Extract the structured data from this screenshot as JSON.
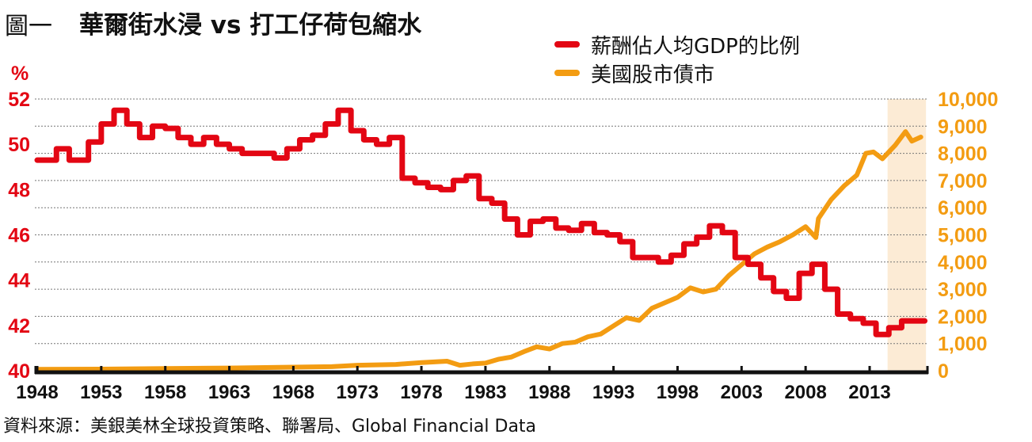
{
  "title": {
    "prefix": "圖一",
    "main": "華爾街水浸 vs 打工仔荷包縮水"
  },
  "legend": [
    {
      "label": "薪酬佔人均GDP的比例",
      "color": "#e30613"
    },
    {
      "label": "美國股市債市",
      "color": "#f39c12"
    }
  ],
  "source": "資料來源：美銀美林全球投資策略、聯署局、Global Financial Data",
  "chart_data": {
    "type": "line",
    "title": "華爾街水浸 vs 打工仔荷包縮水",
    "xlabel": "",
    "ylabel_left": "%",
    "ylabel_right": "",
    "xlim": [
      1948,
      2018
    ],
    "ylim_left": [
      40,
      52
    ],
    "ylim_right": [
      0,
      10000
    ],
    "x_ticks": [
      "1948",
      "1953",
      "1958",
      "1963",
      "1968",
      "1973",
      "1978",
      "1983",
      "1988",
      "1993",
      "1998",
      "2003",
      "2008",
      "2013"
    ],
    "y_ticks_left": [
      "40",
      "42",
      "44",
      "46",
      "48",
      "50",
      "52"
    ],
    "y_ticks_right": [
      "0",
      "1,000",
      "2,000",
      "3,000",
      "4,000",
      "5,000",
      "6,000",
      "7,000",
      "8,000",
      "9,000",
      "10,000"
    ],
    "grid": true,
    "legend_position": "top-right",
    "highlight_range": [
      2014.4,
      2017.4
    ],
    "series": [
      {
        "name": "薪酬佔人均GDP的比例",
        "axis": "left",
        "step": true,
        "color": "#e30613",
        "points": [
          [
            1948,
            49.3
          ],
          [
            1949.5,
            49.8
          ],
          [
            1950.5,
            49.3
          ],
          [
            1952,
            50.1
          ],
          [
            1953,
            50.9
          ],
          [
            1954,
            51.5
          ],
          [
            1955,
            50.9
          ],
          [
            1956,
            50.3
          ],
          [
            1957,
            50.8
          ],
          [
            1958,
            50.7
          ],
          [
            1959,
            50.3
          ],
          [
            1960,
            50.0
          ],
          [
            1961,
            50.3
          ],
          [
            1962,
            50.0
          ],
          [
            1963,
            49.8
          ],
          [
            1964,
            49.6
          ],
          [
            1965.5,
            49.6
          ],
          [
            1966.5,
            49.4
          ],
          [
            1967.5,
            49.8
          ],
          [
            1968.5,
            50.2
          ],
          [
            1969.5,
            50.4
          ],
          [
            1970.5,
            50.9
          ],
          [
            1971.5,
            51.5
          ],
          [
            1972.5,
            50.6
          ],
          [
            1973.5,
            50.2
          ],
          [
            1974.5,
            50.0
          ],
          [
            1975.5,
            50.3
          ],
          [
            1976.5,
            48.5
          ],
          [
            1977.5,
            48.3
          ],
          [
            1978.5,
            48.1
          ],
          [
            1979.5,
            48.0
          ],
          [
            1980.5,
            48.4
          ],
          [
            1981.5,
            48.6
          ],
          [
            1982.5,
            47.6
          ],
          [
            1983.5,
            47.4
          ],
          [
            1984.5,
            46.7
          ],
          [
            1985.5,
            46.0
          ],
          [
            1986.5,
            46.6
          ],
          [
            1987.5,
            46.7
          ],
          [
            1988.5,
            46.3
          ],
          [
            1989.5,
            46.2
          ],
          [
            1990.5,
            46.5
          ],
          [
            1991.5,
            46.1
          ],
          [
            1992.5,
            46.0
          ],
          [
            1993.5,
            45.7
          ],
          [
            1994.5,
            45.0
          ],
          [
            1996.5,
            44.8
          ],
          [
            1997.5,
            45.1
          ],
          [
            1998.5,
            45.6
          ],
          [
            1999.5,
            45.9
          ],
          [
            2000.5,
            46.4
          ],
          [
            2001.5,
            46.1
          ],
          [
            2002.5,
            45.0
          ],
          [
            2003.5,
            44.7
          ],
          [
            2004.5,
            44.1
          ],
          [
            2005.5,
            43.5
          ],
          [
            2006.5,
            43.2
          ],
          [
            2007.5,
            44.3
          ],
          [
            2008.5,
            44.7
          ],
          [
            2009.5,
            43.6
          ],
          [
            2010.5,
            42.5
          ],
          [
            2011.5,
            42.3
          ],
          [
            2012.5,
            42.1
          ],
          [
            2013.5,
            41.6
          ],
          [
            2014.5,
            41.9
          ],
          [
            2015.5,
            42.2
          ],
          [
            2016.5,
            42.2
          ]
        ]
      },
      {
        "name": "美國股市債市",
        "axis": "right",
        "step": false,
        "color": "#f39c12",
        "points": [
          [
            1948,
            50
          ],
          [
            1953,
            60
          ],
          [
            1958,
            80
          ],
          [
            1963,
            100
          ],
          [
            1968,
            130
          ],
          [
            1971,
            150
          ],
          [
            1973,
            200
          ],
          [
            1976,
            230
          ],
          [
            1978,
            300
          ],
          [
            1980,
            350
          ],
          [
            1981,
            200
          ],
          [
            1982,
            250
          ],
          [
            1983,
            280
          ],
          [
            1984,
            420
          ],
          [
            1985,
            500
          ],
          [
            1986,
            700
          ],
          [
            1987,
            880
          ],
          [
            1988,
            800
          ],
          [
            1989,
            1000
          ],
          [
            1990,
            1050
          ],
          [
            1991,
            1250
          ],
          [
            1992,
            1350
          ],
          [
            1993,
            1650
          ],
          [
            1994,
            1950
          ],
          [
            1995,
            1850
          ],
          [
            1996,
            2300
          ],
          [
            1997,
            2500
          ],
          [
            1998,
            2700
          ],
          [
            1999,
            3050
          ],
          [
            2000,
            2900
          ],
          [
            2001,
            3000
          ],
          [
            2002,
            3500
          ],
          [
            2003,
            3900
          ],
          [
            2004,
            4300
          ],
          [
            2005,
            4550
          ],
          [
            2006,
            4750
          ],
          [
            2007,
            5000
          ],
          [
            2008,
            5300
          ],
          [
            2008.8,
            4900
          ],
          [
            2009,
            5600
          ],
          [
            2010,
            6300
          ],
          [
            2011,
            6800
          ],
          [
            2012,
            7200
          ],
          [
            2012.7,
            8000
          ],
          [
            2013.3,
            8050
          ],
          [
            2014,
            7800
          ],
          [
            2015,
            8300
          ],
          [
            2015.8,
            8800
          ],
          [
            2016.3,
            8450
          ],
          [
            2017,
            8600
          ]
        ]
      }
    ]
  }
}
